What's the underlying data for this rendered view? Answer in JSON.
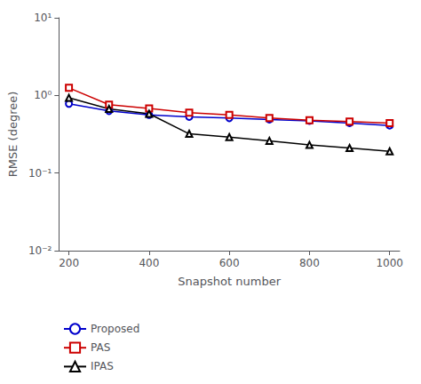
{
  "chart_data": {
    "type": "line",
    "x": [
      200,
      300,
      400,
      500,
      600,
      700,
      800,
      900,
      1000
    ],
    "series": [
      {
        "name": "Proposed",
        "color": "#0000cc",
        "marker": "circle",
        "values": [
          0.78,
          0.63,
          0.56,
          0.53,
          0.51,
          0.49,
          0.47,
          0.44,
          0.41
        ]
      },
      {
        "name": "PAS",
        "color": "#cc0000",
        "marker": "square",
        "values": [
          1.25,
          0.76,
          0.68,
          0.6,
          0.56,
          0.51,
          0.48,
          0.46,
          0.44
        ]
      },
      {
        "name": "IPAS",
        "color": "#000000",
        "marker": "triangle",
        "values": [
          0.93,
          0.67,
          0.58,
          0.32,
          0.29,
          0.26,
          0.23,
          0.21,
          0.19
        ]
      }
    ],
    "xlabel": "Snapshot number",
    "ylabel": "RMSE (degree)",
    "xlim": [
      175,
      1025
    ],
    "xticks": [
      200,
      400,
      600,
      800,
      1000
    ],
    "ylim": [
      0.01,
      10
    ],
    "yticks": [
      {
        "value": 0.01,
        "label": "10⁻²"
      },
      {
        "value": 0.1,
        "label": "10⁻¹"
      },
      {
        "value": 1,
        "label": "10⁰"
      },
      {
        "value": 10,
        "label": "10¹"
      }
    ],
    "log": "y",
    "grid": false,
    "legend": "lower left"
  }
}
